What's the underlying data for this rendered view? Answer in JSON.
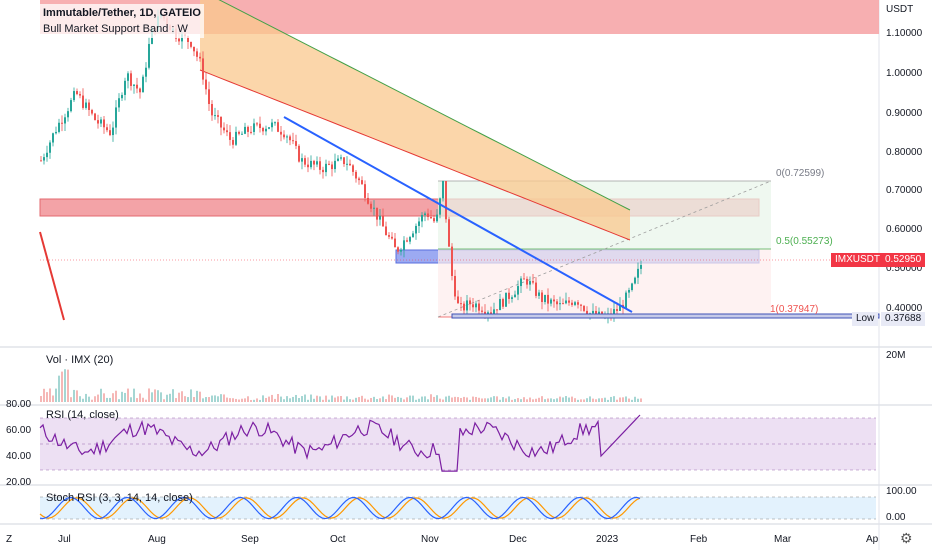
{
  "header": {
    "symbol_title": "Immutable/Tether, 1D, GATEIO",
    "indicator_title": "Bull Market Support Band : W"
  },
  "price_axis": {
    "currency": "USDT",
    "ticks": [
      "1.10000",
      "1.00000",
      "0.90000",
      "0.80000",
      "0.70000",
      "0.60000",
      "0.50000",
      "0.40000"
    ]
  },
  "tags": {
    "symbol": "IMXUSDT",
    "last_price": "0.52950",
    "low_label": "Low",
    "low_value": "0.37688",
    "last_color": "#f23645"
  },
  "fib": {
    "level_0": "0(0.72599)",
    "level_05": "0.5(0.55273)",
    "level_1": "1(0.37947)"
  },
  "volume": {
    "title": "Vol · IMX (20)",
    "axis_label": "20M"
  },
  "rsi": {
    "title": "RSI (14, close)",
    "ticks": [
      "80.00",
      "60.00",
      "40.00",
      "20.00"
    ]
  },
  "stoch": {
    "title": "Stoch RSI (3, 3, 14, 14, close)",
    "ticks": [
      "100.00",
      "0.00"
    ]
  },
  "time_axis": {
    "months": [
      "Jul",
      "Aug",
      "Sep",
      "Oct",
      "Nov",
      "Dec",
      "2023",
      "Feb",
      "Mar",
      "Ap"
    ]
  },
  "icons": {
    "bottom_left": "Z",
    "settings": "gear-icon"
  },
  "colors": {
    "up": "#26a69a",
    "down": "#ef5350",
    "trendline": "#2962ff",
    "rsi": "#7b1fa2",
    "stoch_k": "#2962ff",
    "stoch_d": "#ff9800"
  }
}
